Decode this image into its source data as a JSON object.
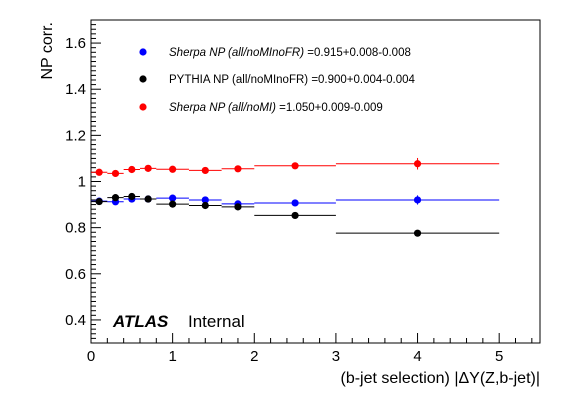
{
  "chart_data": {
    "type": "scatter",
    "xlabel": "(b-jet selection) |ΔY(Z,b-jet)|",
    "ylabel": "NP corr.",
    "xlim": [
      0,
      5.5
    ],
    "ylim": [
      0.3,
      1.7
    ],
    "x_ticks": [
      0,
      1,
      2,
      3,
      4,
      5
    ],
    "x_tick_labels": [
      "0",
      "1",
      "2",
      "3",
      "4",
      "5"
    ],
    "y_ticks": [
      0.4,
      0.6,
      0.8,
      1.0,
      1.2,
      1.4,
      1.6
    ],
    "y_tick_labels": [
      "0.4",
      "0.6",
      "0.8",
      "1",
      "1.2",
      "1.4",
      "1.6"
    ],
    "grid": false,
    "legend_position": "top-left",
    "annotation": {
      "atlas": "ATLAS",
      "status": "Internal"
    },
    "series": [
      {
        "name": "Sherpa NP (all/noMInoFR)",
        "label_style": "italic",
        "summary": "=0.915+0.008-0.008",
        "color": "#0000ff",
        "points": [
          {
            "x": 0.1,
            "xerr": 0.1,
            "y": 0.915,
            "yerr": 0.008
          },
          {
            "x": 0.3,
            "xerr": 0.1,
            "y": 0.912,
            "yerr": 0.008
          },
          {
            "x": 0.5,
            "xerr": 0.1,
            "y": 0.924,
            "yerr": 0.008
          },
          {
            "x": 0.7,
            "xerr": 0.1,
            "y": 0.924,
            "yerr": 0.008
          },
          {
            "x": 1.0,
            "xerr": 0.2,
            "y": 0.928,
            "yerr": 0.008
          },
          {
            "x": 1.4,
            "xerr": 0.2,
            "y": 0.92,
            "yerr": 0.008
          },
          {
            "x": 1.8,
            "xerr": 0.2,
            "y": 0.903,
            "yerr": 0.008
          },
          {
            "x": 2.5,
            "xerr": 0.5,
            "y": 0.907,
            "yerr": 0.008
          },
          {
            "x": 4.0,
            "xerr": 1.0,
            "y": 0.92,
            "yerr": 0.02
          }
        ]
      },
      {
        "name": "PYTHIA NP (all/noMInoFR)",
        "label_style": "normal",
        "summary": "=0.900+0.004-0.004",
        "color": "#000000",
        "points": [
          {
            "x": 0.1,
            "xerr": 0.1,
            "y": 0.913,
            "yerr": 0.004
          },
          {
            "x": 0.3,
            "xerr": 0.1,
            "y": 0.93,
            "yerr": 0.004
          },
          {
            "x": 0.5,
            "xerr": 0.1,
            "y": 0.935,
            "yerr": 0.004
          },
          {
            "x": 0.7,
            "xerr": 0.1,
            "y": 0.924,
            "yerr": 0.004
          },
          {
            "x": 1.0,
            "xerr": 0.2,
            "y": 0.902,
            "yerr": 0.004
          },
          {
            "x": 1.4,
            "xerr": 0.2,
            "y": 0.896,
            "yerr": 0.004
          },
          {
            "x": 1.8,
            "xerr": 0.2,
            "y": 0.89,
            "yerr": 0.004
          },
          {
            "x": 2.5,
            "xerr": 0.5,
            "y": 0.853,
            "yerr": 0.004
          },
          {
            "x": 4.0,
            "xerr": 1.0,
            "y": 0.776,
            "yerr": 0.004
          }
        ]
      },
      {
        "name": "Sherpa NP (all/noMI)",
        "label_style": "italic",
        "summary": "=1.050+0.009-0.009",
        "color": "#ff0000",
        "points": [
          {
            "x": 0.1,
            "xerr": 0.1,
            "y": 1.04,
            "yerr": 0.009
          },
          {
            "x": 0.3,
            "xerr": 0.1,
            "y": 1.035,
            "yerr": 0.009
          },
          {
            "x": 0.5,
            "xerr": 0.1,
            "y": 1.052,
            "yerr": 0.009
          },
          {
            "x": 0.7,
            "xerr": 0.1,
            "y": 1.057,
            "yerr": 0.009
          },
          {
            "x": 1.0,
            "xerr": 0.2,
            "y": 1.053,
            "yerr": 0.009
          },
          {
            "x": 1.4,
            "xerr": 0.2,
            "y": 1.048,
            "yerr": 0.009
          },
          {
            "x": 1.8,
            "xerr": 0.2,
            "y": 1.055,
            "yerr": 0.009
          },
          {
            "x": 2.5,
            "xerr": 0.5,
            "y": 1.068,
            "yerr": 0.012
          },
          {
            "x": 4.0,
            "xerr": 1.0,
            "y": 1.077,
            "yerr": 0.025
          }
        ]
      }
    ]
  }
}
